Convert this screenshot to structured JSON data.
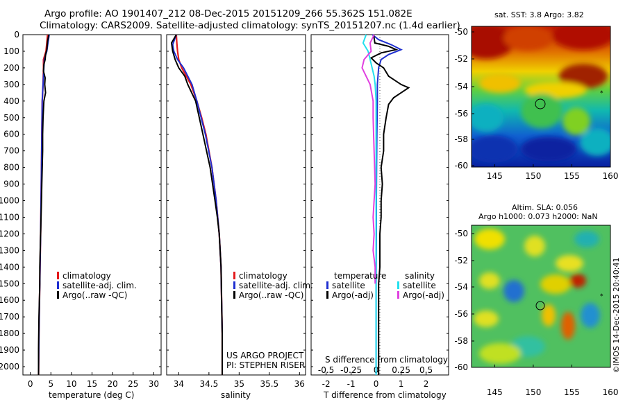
{
  "header": {
    "line1": "Argo profile: AO 1901407_212 08-Dec-2015 20151209_266 55.362S 151.082E",
    "line2": "Climatology: CARS2009. Satellite-adjusted climatology: synTS_20151207.nc (1.4d earlier)"
  },
  "colors": {
    "climatology": "#e31a1c",
    "satellite": "#1f2fd0",
    "argo": "#000000",
    "sal_satellite": "#22e0ee",
    "sal_argo": "#e040e0"
  },
  "depth_axis": {
    "ticks": [
      "0",
      "100",
      "200",
      "300",
      "400",
      "500",
      "600",
      "700",
      "800",
      "900",
      "1000",
      "1100",
      "1200",
      "1300",
      "1400",
      "1500",
      "1600",
      "1700",
      "1800",
      "1900",
      "2000"
    ]
  },
  "credits": {
    "project": "US ARGO PROJECT",
    "pi": "PI: STEPHEN RISER",
    "imos": "©IMOS 14-Dec-2015 20:40:41"
  },
  "sst_map": {
    "title": "sat. SST: 3.8 Argo: 3.82"
  },
  "sla_map": {
    "title1": "Altim. SLA: 0.056",
    "title2": "Argo h1000: 0.073 h2000: NaN"
  },
  "map_axes": {
    "x_ticks": [
      "145",
      "150",
      "155",
      "160"
    ],
    "y_ticks": [
      "-50",
      "-52",
      "-54",
      "-56",
      "-58",
      "-60"
    ]
  },
  "chart_data": [
    {
      "type": "line",
      "xlabel": "temperature (deg C)",
      "ylabel": "",
      "x_ticks": [
        "0",
        "5",
        "10",
        "15",
        "20",
        "25",
        "30"
      ],
      "xlim": [
        -1.8,
        31.8
      ],
      "ylim": [
        2050,
        0
      ],
      "legend": [
        "climatology",
        "satellite-adj. clim.",
        "Argo(..raw -QC)"
      ],
      "series": [
        {
          "name": "climatology",
          "depth": [
            0,
            50,
            100,
            150,
            200,
            300,
            400,
            600,
            800,
            1000,
            1200,
            1500,
            1800,
            2050
          ],
          "values": [
            4.2,
            4.0,
            3.8,
            3.2,
            3.2,
            3.1,
            2.9,
            2.8,
            2.7,
            2.6,
            2.5,
            2.3,
            2.1,
            2.0
          ]
        },
        {
          "name": "satellite-adj. clim.",
          "depth": [
            0,
            50,
            100,
            150,
            200,
            300,
            400,
            600,
            800,
            1000,
            1200,
            1500,
            1800,
            2050
          ],
          "values": [
            4.6,
            4.3,
            4.0,
            3.4,
            3.3,
            3.1,
            2.9,
            2.8,
            2.7,
            2.6,
            2.5,
            2.3,
            2.1,
            2.0
          ]
        },
        {
          "name": "Argo(..raw -QC)",
          "depth": [
            0,
            40,
            90,
            120,
            150,
            180,
            220,
            260,
            300,
            350,
            400,
            500,
            600,
            700,
            800,
            900,
            1000,
            1100,
            1200,
            1300,
            1400,
            1500,
            1700,
            1900,
            2050
          ],
          "values": [
            4.5,
            4.2,
            4.0,
            3.7,
            3.6,
            3.3,
            3.2,
            3.6,
            3.5,
            3.7,
            3.3,
            3.1,
            3.0,
            3.0,
            2.9,
            2.8,
            2.7,
            2.6,
            2.5,
            2.4,
            2.3,
            2.3,
            2.1,
            2.0,
            2.0
          ]
        }
      ]
    },
    {
      "type": "line",
      "xlabel": "salinity",
      "ylabel": "",
      "x_ticks": [
        "34",
        "34.5",
        "35",
        "35.5",
        "36"
      ],
      "xlim": [
        33.8,
        36.1
      ],
      "ylim": [
        2050,
        0
      ],
      "legend": [
        "climatology",
        "satellite-adj. clim.",
        "Argo(..raw -QC)"
      ],
      "series": [
        {
          "name": "climatology",
          "depth": [
            0,
            60,
            100,
            150,
            200,
            300,
            400,
            500,
            600,
            800,
            1000,
            1200,
            1400,
            1600,
            1800,
            2050
          ],
          "values": [
            33.96,
            33.97,
            33.98,
            34.0,
            34.05,
            34.2,
            34.3,
            34.38,
            34.45,
            34.55,
            34.62,
            34.67,
            34.7,
            34.71,
            34.72,
            34.72
          ]
        },
        {
          "name": "satellite-adj. clim.",
          "depth": [
            0,
            60,
            100,
            150,
            200,
            300,
            400,
            500,
            600,
            800,
            1000,
            1200,
            1400,
            1600,
            1800,
            2050
          ],
          "values": [
            33.96,
            33.9,
            33.92,
            33.98,
            34.08,
            34.22,
            34.3,
            34.37,
            34.44,
            34.55,
            34.62,
            34.67,
            34.7,
            34.71,
            34.72,
            34.72
          ]
        },
        {
          "name": "Argo(..raw -QC)",
          "depth": [
            0,
            50,
            100,
            150,
            200,
            250,
            300,
            400,
            500,
            600,
            700,
            800,
            900,
            1000,
            1100,
            1200,
            1400,
            1600,
            1800,
            2050
          ],
          "values": [
            33.96,
            33.88,
            33.9,
            33.94,
            34.0,
            34.1,
            34.15,
            34.28,
            34.34,
            34.4,
            34.46,
            34.52,
            34.56,
            34.6,
            34.64,
            34.67,
            34.7,
            34.71,
            34.72,
            34.72
          ]
        }
      ]
    },
    {
      "type": "line",
      "xlabel": "T difference from climatology",
      "x_ticks": [
        "-2",
        "-1",
        "0",
        "1",
        "2"
      ],
      "xlim": [
        -2.6,
        2.9
      ],
      "x2label": "S difference from climatology",
      "x2_ticks": [
        "-0.5",
        "-0.25",
        "0",
        "0.25",
        "0.5"
      ],
      "ylim": [
        2050,
        0
      ],
      "legend_titles": [
        "temperature",
        "salinity"
      ],
      "legend": [
        "satellite",
        "Argo(-adj)",
        "satellite",
        "Argo(-adj)"
      ],
      "series": [
        {
          "name": "T satellite",
          "depth": [
            0,
            30,
            60,
            90,
            120,
            150,
            200,
            300,
            400,
            600,
            800,
            1000,
            1200,
            1500,
            1800,
            2050
          ],
          "values": [
            -0.15,
            0.1,
            0.6,
            1.0,
            0.5,
            0.2,
            0.1,
            0.05,
            0.05,
            0.03,
            0.02,
            0.01,
            0.01,
            0.0,
            0.0,
            0.0
          ]
        },
        {
          "name": "T Argo(-adj)",
          "depth": [
            0,
            50,
            70,
            90,
            110,
            140,
            170,
            200,
            250,
            300,
            320,
            350,
            380,
            420,
            500,
            600,
            700,
            800,
            900,
            1000,
            1100,
            1200,
            1400,
            1500,
            1600,
            1800,
            2050
          ],
          "values": [
            -0.1,
            -0.05,
            0.5,
            0.8,
            0.2,
            -0.2,
            0.0,
            0.3,
            0.5,
            1.0,
            1.3,
            1.0,
            0.7,
            0.5,
            0.4,
            0.3,
            0.3,
            0.2,
            0.25,
            0.2,
            0.2,
            0.15,
            0.15,
            0.1,
            0.1,
            0.1,
            0.1
          ]
        },
        {
          "name": "S satellite",
          "depth": [
            0,
            50,
            100,
            150,
            200,
            250,
            300,
            400,
            500,
            700,
            900,
            1100,
            1300,
            1500,
            1800,
            2050
          ],
          "values": [
            -0.1,
            -0.13,
            -0.08,
            -0.06,
            -0.04,
            -0.02,
            -0.01,
            0.0,
            0.0,
            0.0,
            0.0,
            0.0,
            0.0,
            0.0,
            0.0,
            0.0
          ]
        },
        {
          "name": "S Argo(-adj)",
          "depth": [
            0,
            50,
            100,
            150,
            200,
            250,
            300,
            400,
            500,
            700,
            900,
            1000,
            1100,
            1200,
            1300,
            1400,
            1500
          ],
          "values": [
            -0.02,
            -0.06,
            -0.05,
            -0.12,
            -0.14,
            -0.1,
            -0.06,
            -0.03,
            -0.03,
            -0.02,
            -0.01,
            -0.02,
            -0.03,
            -0.02,
            -0.03,
            -0.01,
            -0.01
          ]
        }
      ]
    }
  ]
}
